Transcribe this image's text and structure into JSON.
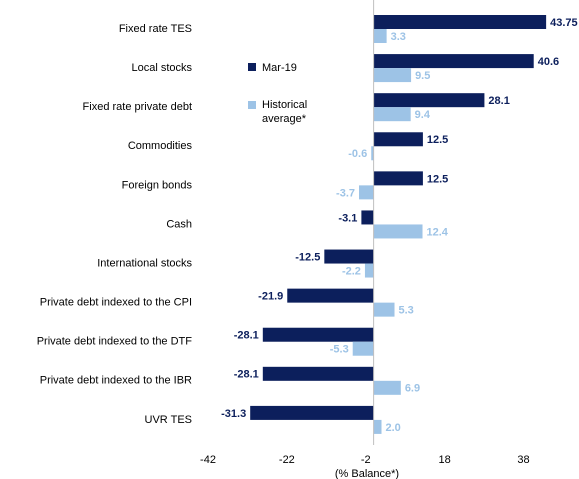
{
  "chart_data": {
    "type": "hbar",
    "categories": [
      "Fixed rate TES",
      "Local stocks",
      "Fixed rate private debt",
      "Commodities",
      "Foreign bonds",
      "Cash",
      "International stocks",
      "Private debt indexed to the CPI",
      "Private debt indexed to the DTF",
      "Private debt indexed to the IBR",
      "UVR TES"
    ],
    "series": [
      {
        "name": "Mar-19",
        "color": "#0c1f5c",
        "values": [
          43.75,
          40.6,
          28.1,
          12.5,
          12.5,
          -3.1,
          -12.5,
          -21.9,
          -28.1,
          -28.1,
          -31.3
        ]
      },
      {
        "name": "Historical average*",
        "color": "#9dc3e6",
        "values": [
          3.3,
          9.5,
          9.4,
          -0.6,
          -3.7,
          12.4,
          -2.2,
          5.3,
          -5.3,
          6.9,
          2.0
        ],
        "value_labels": [
          "3.3",
          "9.5",
          "9.4",
          "-0.6",
          "-3.7",
          "12.4",
          "-2.2",
          "5.3",
          "-5.3",
          "6.9",
          "2.0"
        ]
      }
    ],
    "x_label": "(% Balance*)",
    "xlim": [
      -42,
      46
    ],
    "xticks": [
      -42,
      -22,
      -2,
      18,
      38
    ],
    "grid": false
  }
}
